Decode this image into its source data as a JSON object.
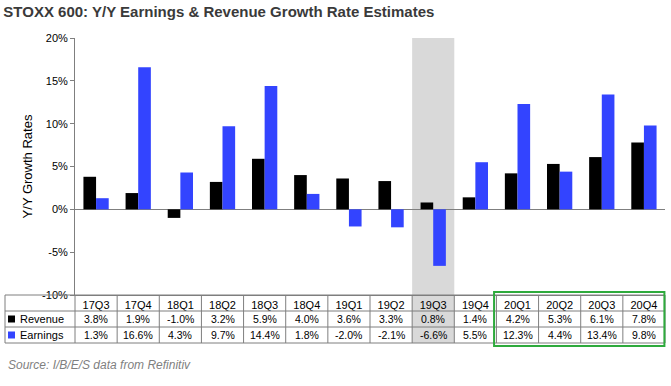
{
  "chart_data": {
    "type": "bar",
    "title": "STOXX 600: Y/Y Earnings & Revenue Growth Rate Estimates",
    "y_label": "Y/Y Growth Rates",
    "source": "Source: I/B/E/S data from Refinitiv",
    "categories": [
      "17Q3",
      "17Q4",
      "18Q1",
      "18Q2",
      "18Q3",
      "18Q4",
      "19Q1",
      "19Q2",
      "19Q3",
      "19Q4",
      "20Q1",
      "20Q2",
      "20Q3",
      "20Q4"
    ],
    "series": [
      {
        "name": "Revenue",
        "color": "#000000",
        "values": [
          3.8,
          1.9,
          -1.0,
          3.2,
          5.9,
          4.0,
          3.6,
          3.3,
          0.8,
          1.4,
          4.2,
          5.3,
          6.1,
          7.8
        ],
        "value_labels": [
          "3.8%",
          "1.9%",
          "-1.0%",
          "3.2%",
          "5.9%",
          "4.0%",
          "3.6%",
          "3.3%",
          "0.8%",
          "1.4%",
          "4.2%",
          "5.3%",
          "6.1%",
          "7.8%"
        ]
      },
      {
        "name": "Earnings",
        "color": "#3344ff",
        "values": [
          1.3,
          16.6,
          4.3,
          9.7,
          14.4,
          1.8,
          -2.0,
          -2.1,
          -6.6,
          5.5,
          12.3,
          4.4,
          13.4,
          9.8
        ],
        "value_labels": [
          "1.3%",
          "16.6%",
          "4.3%",
          "9.7%",
          "14.4%",
          "1.8%",
          "-2.0%",
          "-2.1%",
          "-6.6%",
          "5.5%",
          "12.3%",
          "4.4%",
          "13.4%",
          "9.8%"
        ]
      }
    ],
    "ylim": [
      -10,
      20
    ],
    "yticks": [
      {
        "value": -10,
        "label": "-10%"
      },
      {
        "value": -5,
        "label": "-5%"
      },
      {
        "value": 0,
        "label": "0%"
      },
      {
        "value": 5,
        "label": "5%"
      },
      {
        "value": 10,
        "label": "10%"
      },
      {
        "value": 15,
        "label": "15%"
      },
      {
        "value": 20,
        "label": "20%"
      }
    ],
    "grid": false
  }
}
